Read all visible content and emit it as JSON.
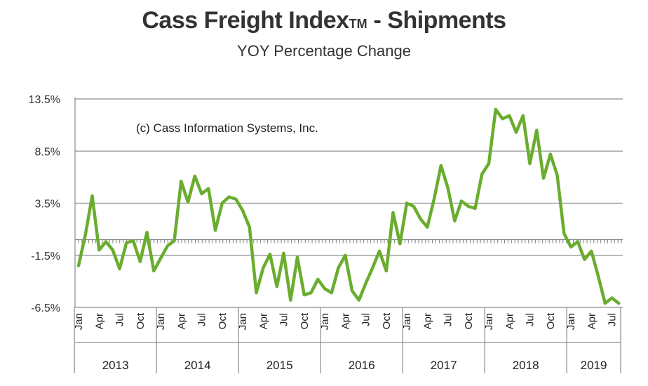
{
  "chart_data": {
    "type": "line",
    "title": "Cass Freight Index",
    "title_mark": "TM",
    "title_suffix": " - Shipments",
    "subtitle": "YOY Percentage Change",
    "annotation": "(c) Cass Information Systems, Inc.",
    "xlabel": "",
    "ylabel": "",
    "ylim": [
      -6.5,
      13.5
    ],
    "y_ticks": [
      "13.5%",
      "8.5%",
      "3.5%",
      "-1.5%",
      "-6.5%"
    ],
    "y_tick_values": [
      13.5,
      8.5,
      3.5,
      -1.5,
      -6.5
    ],
    "zero_line": 0,
    "grid": true,
    "months": [
      "Jan",
      "Apr",
      "Jul",
      "Oct"
    ],
    "years": [
      "2013",
      "2014",
      "2015",
      "2016",
      "2017",
      "2018",
      "2019"
    ],
    "line_color": "#6aad2e",
    "series": [
      {
        "values": [
          -2.5,
          0.5,
          4.2,
          -1.0,
          -0.2,
          -1.0,
          -2.8,
          -0.3,
          -0.1,
          -2.1,
          0.7,
          -3.0,
          -1.8,
          -0.6,
          -0.1,
          5.6,
          3.6,
          6.1,
          4.4,
          4.9,
          0.9,
          3.5,
          4.1,
          3.9,
          2.8,
          1.2,
          -5.1,
          -2.7,
          -1.4,
          -4.5,
          -1.3,
          -5.8,
          -1.7,
          -5.3,
          -5.1,
          -3.8,
          -4.7,
          -5.1,
          -2.7,
          -1.5,
          -4.9,
          -5.8,
          -4.2,
          -2.7,
          -1.1,
          -3.0,
          2.6,
          -0.4,
          3.5,
          3.2,
          2.0,
          1.2,
          3.9,
          7.1,
          5.0,
          1.8,
          3.7,
          3.2,
          3.0,
          6.3,
          7.3,
          12.5,
          11.6,
          11.9,
          10.3,
          11.9,
          7.3,
          10.5,
          5.9,
          8.2,
          6.2,
          0.6,
          -0.7,
          -0.2,
          -1.9,
          -1.1,
          -3.5,
          -6.1,
          -5.6,
          -6.1
        ]
      }
    ]
  }
}
